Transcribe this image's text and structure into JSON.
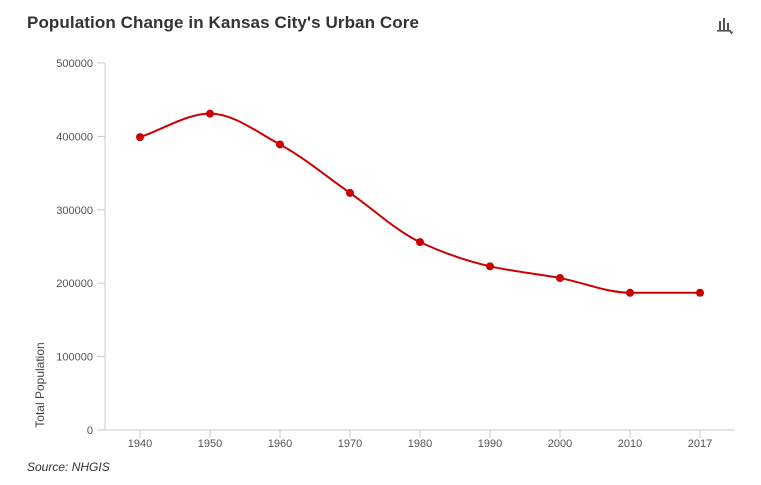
{
  "title": "Population Change in Kansas City's Urban Core",
  "menu_icon": "chart-menu-icon",
  "source": "Source: NHGIS",
  "colors": {
    "series": "#cc0000",
    "axis": "#cccccc",
    "text": "#333333"
  },
  "chart_data": {
    "type": "line",
    "title": "Population Change in Kansas City's Urban Core",
    "xlabel": "",
    "ylabel": "Total Population",
    "categories": [
      "1940",
      "1950",
      "1960",
      "1970",
      "1980",
      "1990",
      "2000",
      "2010",
      "2017"
    ],
    "series": [
      {
        "name": "Total Population",
        "values": [
          399000,
          431000,
          389000,
          323000,
          256000,
          223000,
          207000,
          187000,
          187000
        ]
      }
    ],
    "y_ticks": [
      "0",
      "100000",
      "200000",
      "300000",
      "400000",
      "500000"
    ],
    "ylim": [
      0,
      500000
    ],
    "grid": false,
    "smooth": true
  }
}
